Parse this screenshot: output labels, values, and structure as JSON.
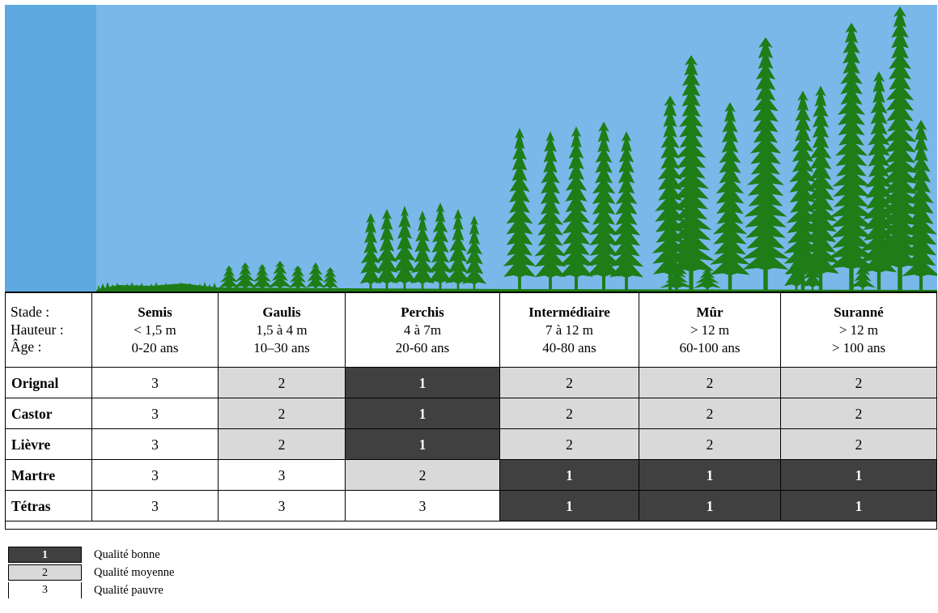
{
  "colors": {
    "sky": "#7ab8ea",
    "sky_left": "#5fa9e2",
    "tree": "#1e7d16",
    "quality_good": "#404040",
    "quality_medium": "#d9d9d9",
    "quality_poor": "#ffffff"
  },
  "icons": [
    "stage-illustration-trees"
  ],
  "header": {
    "labels": [
      "Stade :",
      "Hauteur :",
      "Âge :"
    ],
    "stages": [
      {
        "name": "Semis",
        "height": "< 1,5 m",
        "age": "0-20 ans"
      },
      {
        "name": "Gaulis",
        "height": "1,5 à 4 m",
        "age": "10–30 ans"
      },
      {
        "name": "Perchis",
        "height": "4 à 7m",
        "age": "20-60 ans"
      },
      {
        "name": "Intermédiaire",
        "height": "7 à 12 m",
        "age": "40-80 ans"
      },
      {
        "name": "Mûr",
        "height": "> 12 m",
        "age": "60-100 ans"
      },
      {
        "name": "Suranné",
        "height": "> 12 m",
        "age": "> 100 ans"
      }
    ]
  },
  "rows": [
    {
      "species": "Orignal",
      "values": [
        "3",
        "2",
        "1",
        "2",
        "2",
        "2"
      ]
    },
    {
      "species": "Castor",
      "values": [
        "3",
        "2",
        "1",
        "2",
        "2",
        "2"
      ]
    },
    {
      "species": "Lièvre",
      "values": [
        "3",
        "2",
        "1",
        "2",
        "2",
        "2"
      ]
    },
    {
      "species": "Martre",
      "values": [
        "3",
        "3",
        "2",
        "1",
        "1",
        "1"
      ]
    },
    {
      "species": "Tétras",
      "values": [
        "3",
        "3",
        "3",
        "1",
        "1",
        "1"
      ]
    }
  ],
  "legend": [
    {
      "value": "1",
      "label": "Qualité bonne"
    },
    {
      "value": "2",
      "label": "Qualité moyenne"
    },
    {
      "value": "3",
      "label": "Qualité pauvre"
    }
  ]
}
